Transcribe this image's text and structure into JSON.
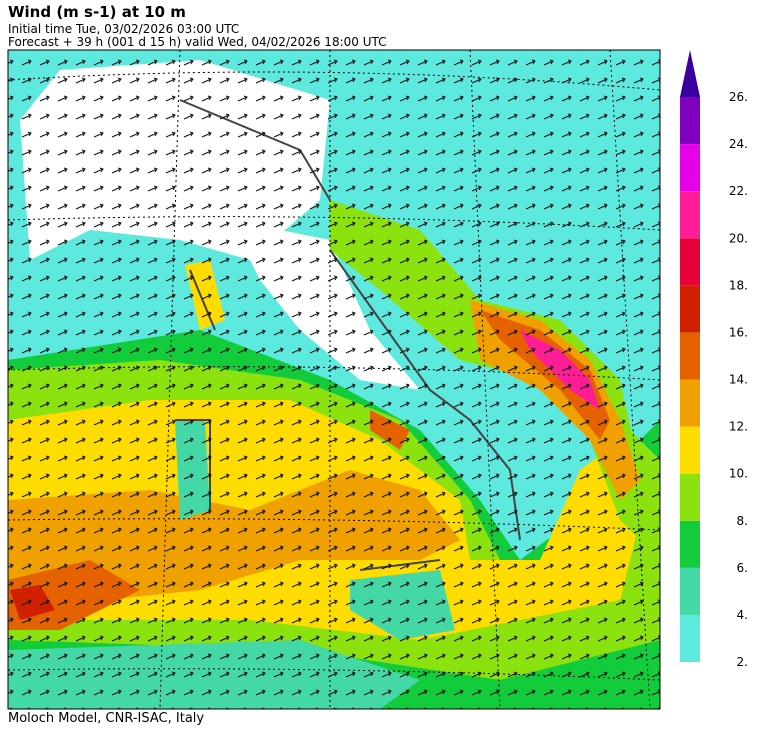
{
  "header": {
    "title": "Wind (m s-1) at 10 m",
    "initial_time": "Initial time  Tue, 03/02/2026  03:00 UTC",
    "forecast": "Forecast +  39 h  (001 d 15 h)  valid Wed, 04/02/2026 18:00 UTC"
  },
  "colorbar": {
    "labels": [
      "2.",
      "4.",
      "6.",
      "8.",
      "10.",
      "12.",
      "14.",
      "16.",
      "18.",
      "20.",
      "22.",
      "24.",
      "26."
    ],
    "colors": [
      "#5ee9df",
      "#44d8a6",
      "#12cc3c",
      "#8be20e",
      "#ffdc00",
      "#f0a000",
      "#e66200",
      "#d02000",
      "#e8003a",
      "#ff1c96",
      "#e400e8",
      "#8000c0"
    ],
    "extend_color": "#3a00a0"
  },
  "footer": "Moloch Model, CNR-ISAC, Italy"
}
